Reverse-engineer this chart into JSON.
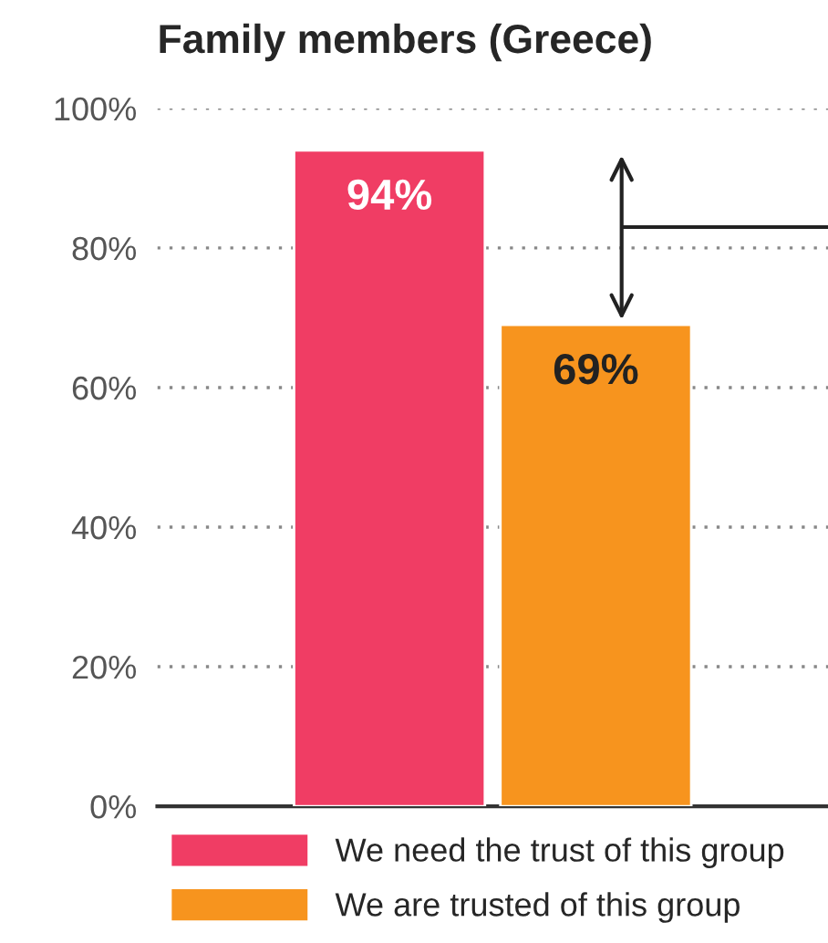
{
  "chart_data": {
    "type": "bar",
    "title": "Family members (Greece)",
    "categories": [
      null
    ],
    "series": [
      {
        "name": "We need the trust of this group",
        "color": "#f03d64",
        "values": [
          94
        ],
        "value_labels": [
          "94%"
        ]
      },
      {
        "name": "We are trusted of this group",
        "color": "#f7941e",
        "values": [
          69
        ],
        "value_labels": [
          "69%"
        ]
      }
    ],
    "ylim": [
      0,
      100
    ],
    "yticks": [
      {
        "value": 0,
        "label": "0%"
      },
      {
        "value": 20,
        "label": "20%"
      },
      {
        "value": 40,
        "label": "40%"
      },
      {
        "value": 60,
        "label": "60%"
      },
      {
        "value": 80,
        "label": "80%"
      },
      {
        "value": 100,
        "label": "100%"
      }
    ],
    "grid": "y",
    "legend": "bottom"
  }
}
